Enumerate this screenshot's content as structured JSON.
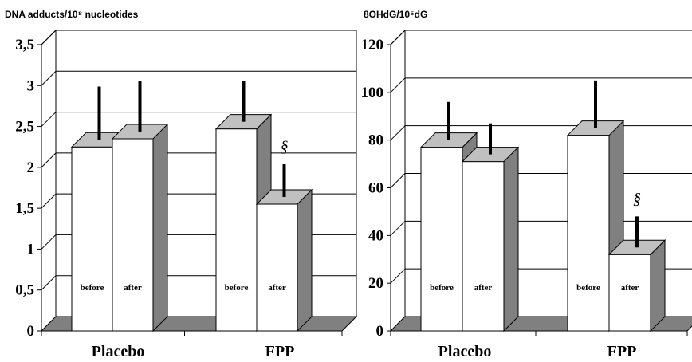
{
  "chart_data": [
    {
      "type": "bar",
      "title": "DNA adducts/10⁸ nucleotides",
      "categories": [
        "Placebo",
        "FPP"
      ],
      "series": [
        {
          "name": "before",
          "values": [
            2.25,
            2.47
          ],
          "error_upper": [
            2.9,
            2.97
          ]
        },
        {
          "name": "after",
          "values": [
            2.35,
            1.55
          ],
          "error_upper": [
            2.97,
            1.95
          ]
        }
      ],
      "significance_marks": [
        {
          "category": "FPP",
          "series": "after",
          "text": "§"
        }
      ],
      "ylim": [
        0,
        3.5
      ],
      "yticks": [
        "0",
        "0,5",
        "1",
        "1,5",
        "2",
        "2,5",
        "3",
        "3,5"
      ],
      "grid": true,
      "style": "3d"
    },
    {
      "type": "bar",
      "title": "8OHdG/10⁵dG",
      "categories": [
        "Placebo",
        "FPP"
      ],
      "series": [
        {
          "name": "before",
          "values": [
            77,
            82
          ],
          "error_upper": [
            93,
            102
          ]
        },
        {
          "name": "after",
          "values": [
            71,
            32
          ],
          "error_upper": [
            84,
            45
          ]
        }
      ],
      "significance_marks": [
        {
          "category": "FPP",
          "series": "after",
          "text": "§"
        }
      ],
      "ylim": [
        0,
        120
      ],
      "yticks": [
        "0",
        "20",
        "40",
        "60",
        "80",
        "100",
        "120"
      ],
      "grid": true,
      "style": "3d"
    }
  ]
}
